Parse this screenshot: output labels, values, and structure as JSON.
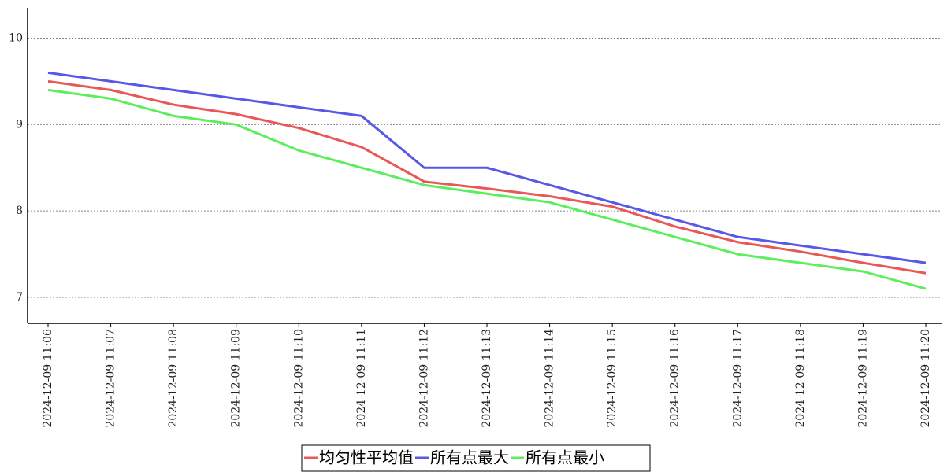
{
  "chart_data": {
    "type": "line",
    "categories": [
      "2024-12-09 11:06",
      "2024-12-09 11:07",
      "2024-12-09 11:08",
      "2024-12-09 11:09",
      "2024-12-09 11:10",
      "2024-12-09 11:11",
      "2024-12-09 11:12",
      "2024-12-09 11:13",
      "2024-12-09 11:14",
      "2024-12-09 11:15",
      "2024-12-09 11:16",
      "2024-12-09 11:17",
      "2024-12-09 11:18",
      "2024-12-09 11:19",
      "2024-12-09 11:20"
    ],
    "series": [
      {
        "name": "均匀性平均值",
        "color": "#e85858",
        "values": [
          9.5,
          9.4,
          9.23,
          9.12,
          8.96,
          8.74,
          8.34,
          8.26,
          8.17,
          8.05,
          7.82,
          7.64,
          7.53,
          7.4,
          7.28
        ]
      },
      {
        "name": "所有点最大",
        "color": "#5858e6",
        "values": [
          9.6,
          9.5,
          9.4,
          9.3,
          9.2,
          9.1,
          8.5,
          8.5,
          8.3,
          8.1,
          7.9,
          7.7,
          7.6,
          7.5,
          7.4
        ]
      },
      {
        "name": "所有点最小",
        "color": "#5cee5c",
        "values": [
          9.4,
          9.3,
          9.1,
          9.0,
          8.7,
          8.5,
          8.3,
          8.2,
          8.1,
          7.9,
          7.7,
          7.5,
          7.4,
          7.3,
          7.1
        ]
      }
    ],
    "ylim": [
      6.7,
      10.35
    ],
    "yticks": [
      7,
      8,
      9,
      10
    ],
    "grid": true,
    "legend": "bottom"
  }
}
